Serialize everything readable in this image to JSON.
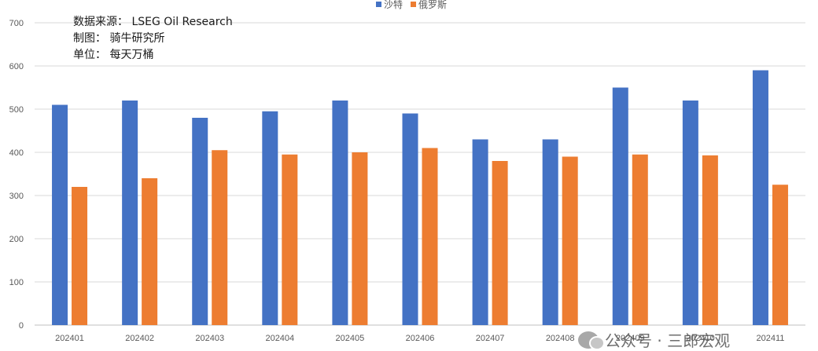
{
  "notes": {
    "source": "数据来源： LSEG Oil Research",
    "made_by": "制图： 骑牛研究所",
    "unit": "单位： 每天万桶"
  },
  "watermark": {
    "text": "公众号 · 三郎宏观"
  },
  "chart_data": {
    "type": "bar",
    "categories": [
      "202401",
      "202402",
      "202403",
      "202404",
      "202405",
      "202406",
      "202407",
      "202408",
      "202409",
      "202410",
      "202411"
    ],
    "series": [
      {
        "name": "沙特",
        "color": "#4472C4",
        "values": [
          510,
          520,
          480,
          495,
          520,
          490,
          430,
          430,
          550,
          520,
          590
        ]
      },
      {
        "name": "俄罗斯",
        "color": "#ED7D31",
        "values": [
          320,
          340,
          405,
          395,
          400,
          410,
          380,
          390,
          395,
          393,
          325
        ]
      }
    ],
    "ylim": [
      0,
      700
    ],
    "yticks": [
      0,
      100,
      200,
      300,
      400,
      500,
      600,
      700
    ],
    "grid": true,
    "legend_position": "top-center"
  }
}
